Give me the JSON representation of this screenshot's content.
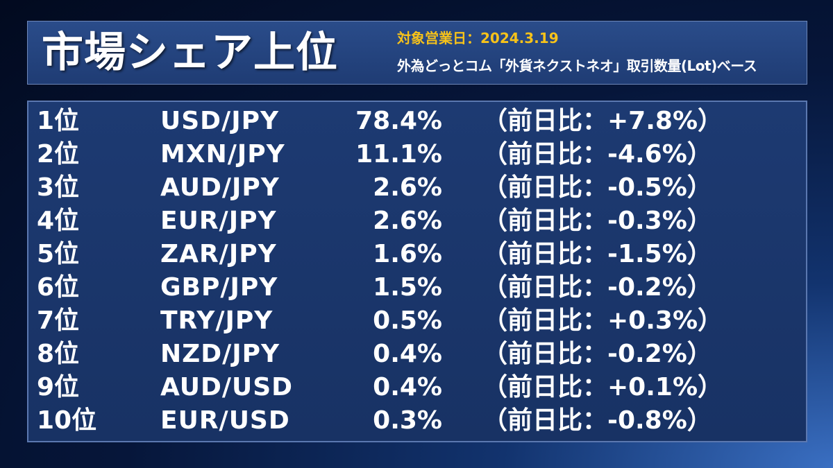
{
  "header": {
    "title": "市場シェア上位",
    "date_label": "対象営業日：2024.3.19",
    "basis": "外為どっとコム「外貨ネクストネオ」取引数量(Lot)ベース"
  },
  "rows": [
    {
      "rank": "1位",
      "pair": "USD/JPY",
      "share": "78.4%",
      "change": "（前日比：+7.8%）"
    },
    {
      "rank": "2位",
      "pair": "MXN/JPY",
      "share": "11.1%",
      "change": "（前日比：-4.6%）"
    },
    {
      "rank": "3位",
      "pair": "AUD/JPY",
      "share": "2.6%",
      "change": "（前日比：-0.5%）"
    },
    {
      "rank": "4位",
      "pair": "EUR/JPY",
      "share": "2.6%",
      "change": "（前日比：-0.3%）"
    },
    {
      "rank": "5位",
      "pair": "ZAR/JPY",
      "share": "1.6%",
      "change": "（前日比：-1.5%）"
    },
    {
      "rank": "6位",
      "pair": "GBP/JPY",
      "share": "1.5%",
      "change": "（前日比：-0.2%）"
    },
    {
      "rank": "7位",
      "pair": "TRY/JPY",
      "share": "0.5%",
      "change": "（前日比：+0.3%）"
    },
    {
      "rank": "8位",
      "pair": "NZD/JPY",
      "share": "0.4%",
      "change": "（前日比：-0.2%）"
    },
    {
      "rank": "9位",
      "pair": "AUD/USD",
      "share": "0.4%",
      "change": "（前日比：+0.1%）"
    },
    {
      "rank": "10位",
      "pair": "EUR/USD",
      "share": "0.3%",
      "change": "（前日比：-0.8%）"
    }
  ],
  "colors": {
    "accent": "#f6c21a",
    "panel": "#1d3a72",
    "text": "#ffffff"
  }
}
